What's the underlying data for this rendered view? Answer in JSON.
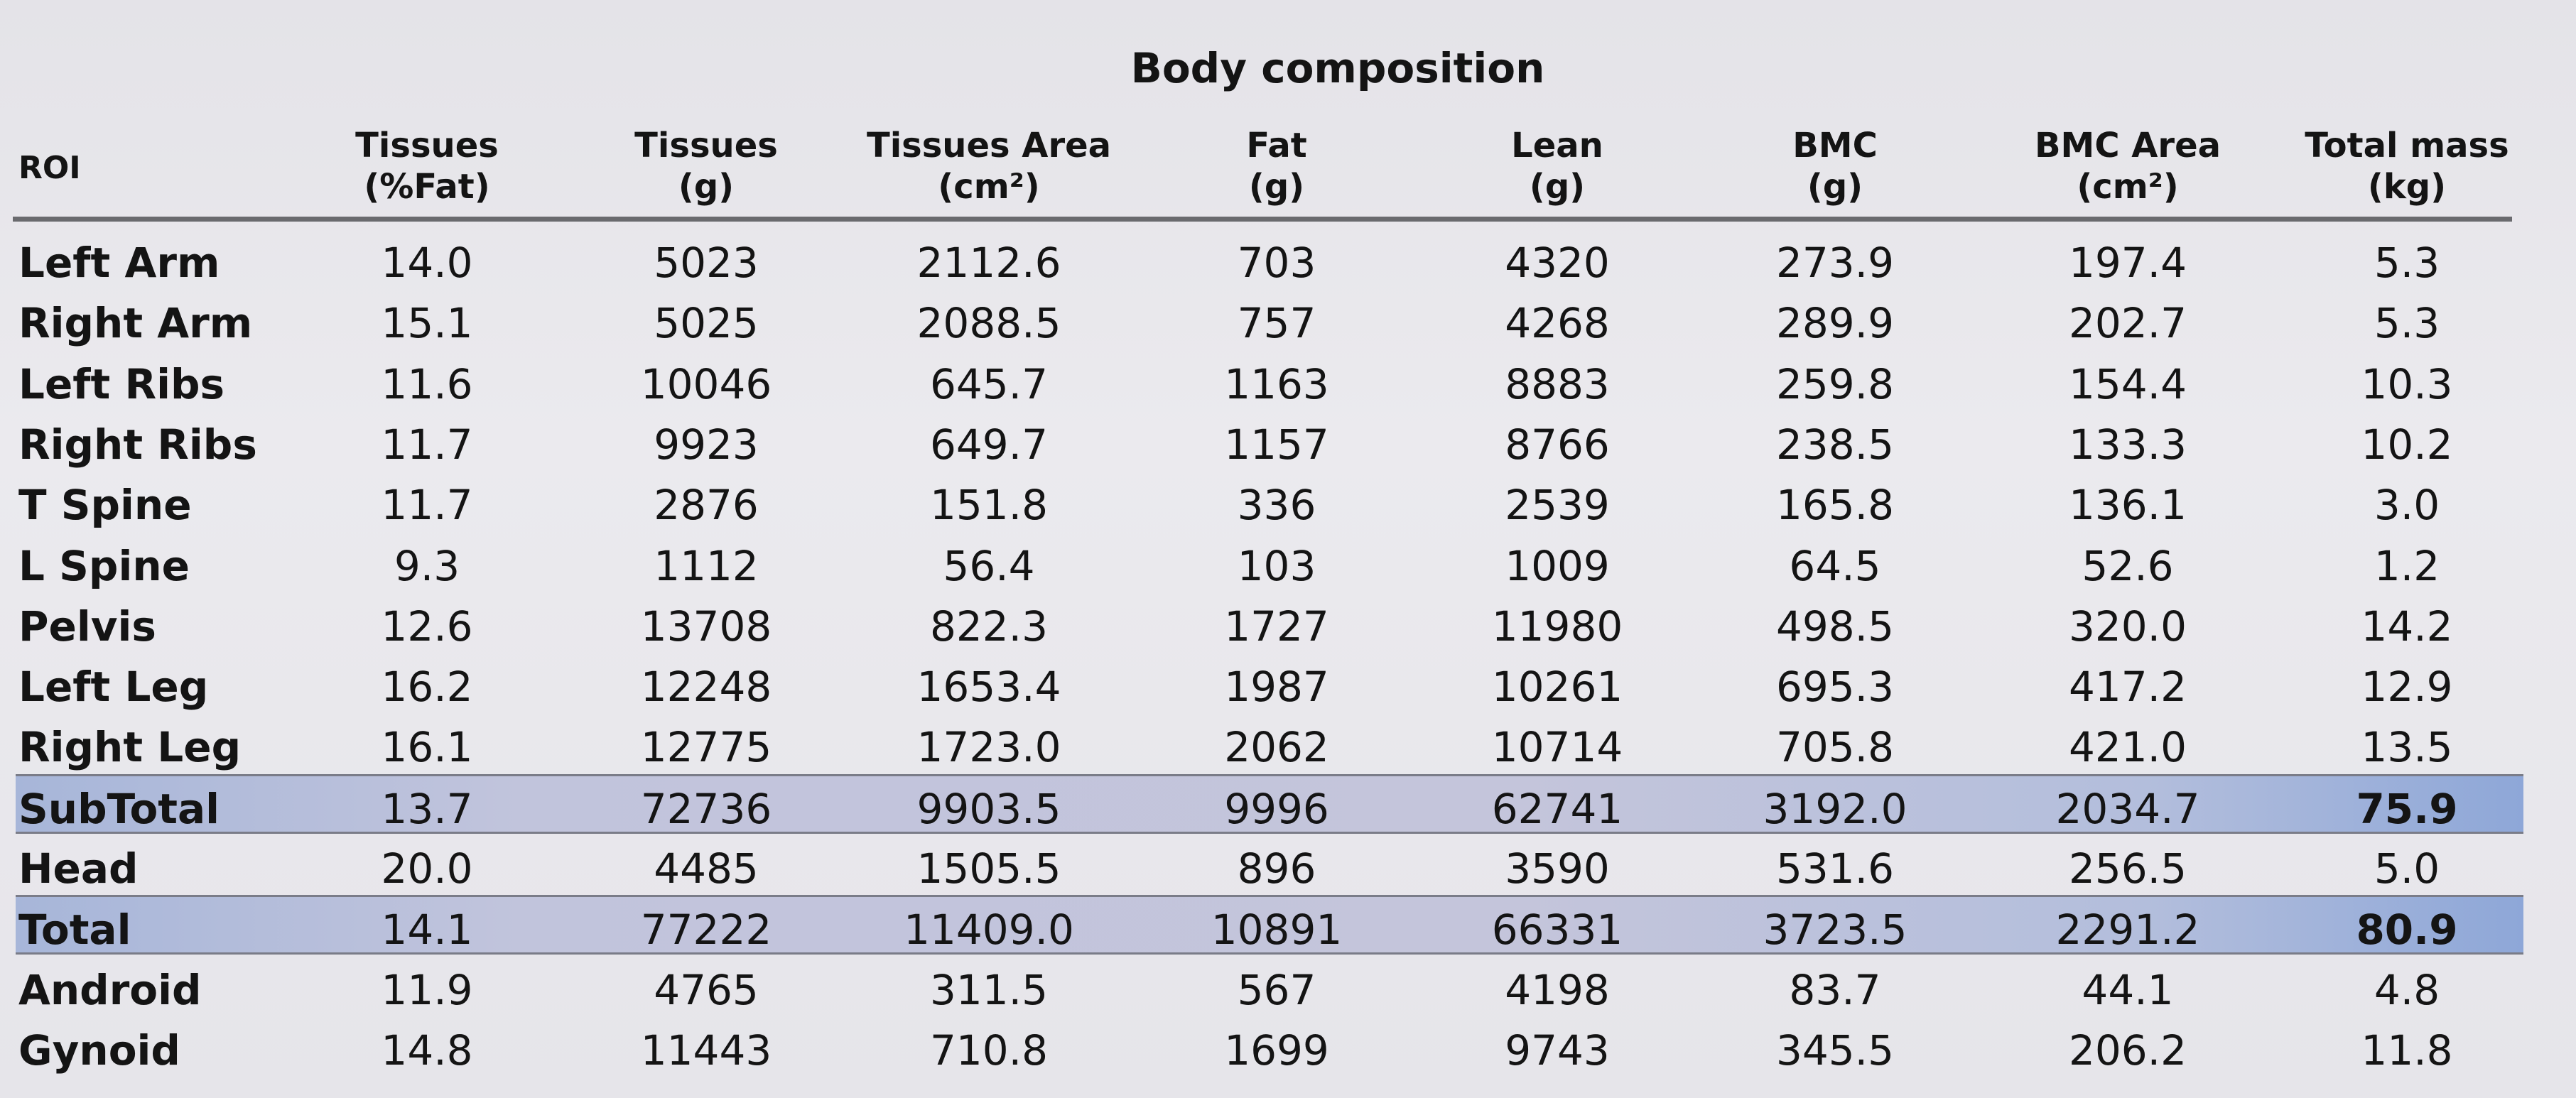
{
  "title": "Body composition",
  "columns": [
    {
      "line1": "ROI",
      "line2": ""
    },
    {
      "line1": "Tissues",
      "line2": "(%Fat)"
    },
    {
      "line1": "Tissues",
      "line2": "(g)"
    },
    {
      "line1": "Tissues Area",
      "line2": "(cm²)"
    },
    {
      "line1": "Fat",
      "line2": "(g)"
    },
    {
      "line1": "Lean",
      "line2": "(g)"
    },
    {
      "line1": "BMC",
      "line2": "(g)"
    },
    {
      "line1": "BMC Area",
      "line2": "(cm²)"
    },
    {
      "line1": "Total mass",
      "line2": "(kg)"
    }
  ],
  "highlight_color": "#c1c4dc",
  "rows": [
    {
      "roi": "Left Arm",
      "values": [
        "14.0",
        "5023",
        "2112.6",
        "703",
        "4320",
        "273.9",
        "197.4",
        "5.3"
      ],
      "highlight": false
    },
    {
      "roi": "Right Arm",
      "values": [
        "15.1",
        "5025",
        "2088.5",
        "757",
        "4268",
        "289.9",
        "202.7",
        "5.3"
      ],
      "highlight": false
    },
    {
      "roi": "Left Ribs",
      "values": [
        "11.6",
        "10046",
        "645.7",
        "1163",
        "8883",
        "259.8",
        "154.4",
        "10.3"
      ],
      "highlight": false
    },
    {
      "roi": "Right Ribs",
      "values": [
        "11.7",
        "9923",
        "649.7",
        "1157",
        "8766",
        "238.5",
        "133.3",
        "10.2"
      ],
      "highlight": false
    },
    {
      "roi": "T Spine",
      "values": [
        "11.7",
        "2876",
        "151.8",
        "336",
        "2539",
        "165.8",
        "136.1",
        "3.0"
      ],
      "highlight": false
    },
    {
      "roi": "L Spine",
      "values": [
        "9.3",
        "1112",
        "56.4",
        "103",
        "1009",
        "64.5",
        "52.6",
        "1.2"
      ],
      "highlight": false
    },
    {
      "roi": "Pelvis",
      "values": [
        "12.6",
        "13708",
        "822.3",
        "1727",
        "11980",
        "498.5",
        "320.0",
        "14.2"
      ],
      "highlight": false
    },
    {
      "roi": "Left Leg",
      "values": [
        "16.2",
        "12248",
        "1653.4",
        "1987",
        "10261",
        "695.3",
        "417.2",
        "12.9"
      ],
      "highlight": false
    },
    {
      "roi": "Right Leg",
      "values": [
        "16.1",
        "12775",
        "1723.0",
        "2062",
        "10714",
        "705.8",
        "421.0",
        "13.5"
      ],
      "highlight": false
    },
    {
      "roi": "SubTotal",
      "values": [
        "13.7",
        "72736",
        "9903.5",
        "9996",
        "62741",
        "3192.0",
        "2034.7",
        "75.9"
      ],
      "highlight": true
    },
    {
      "roi": "Head",
      "values": [
        "20.0",
        "4485",
        "1505.5",
        "896",
        "3590",
        "531.6",
        "256.5",
        "5.0"
      ],
      "highlight": false
    },
    {
      "roi": "Total",
      "values": [
        "14.1",
        "77222",
        "11409.0",
        "10891",
        "66331",
        "3723.5",
        "2291.2",
        "80.9"
      ],
      "highlight": true
    },
    {
      "roi": "Android",
      "values": [
        "11.9",
        "4765",
        "311.5",
        "567",
        "4198",
        "83.7",
        "44.1",
        "4.8"
      ],
      "highlight": false
    },
    {
      "roi": "Gynoid",
      "values": [
        "14.8",
        "11443",
        "710.8",
        "1699",
        "9743",
        "345.5",
        "206.2",
        "11.8"
      ],
      "highlight": false
    }
  ]
}
